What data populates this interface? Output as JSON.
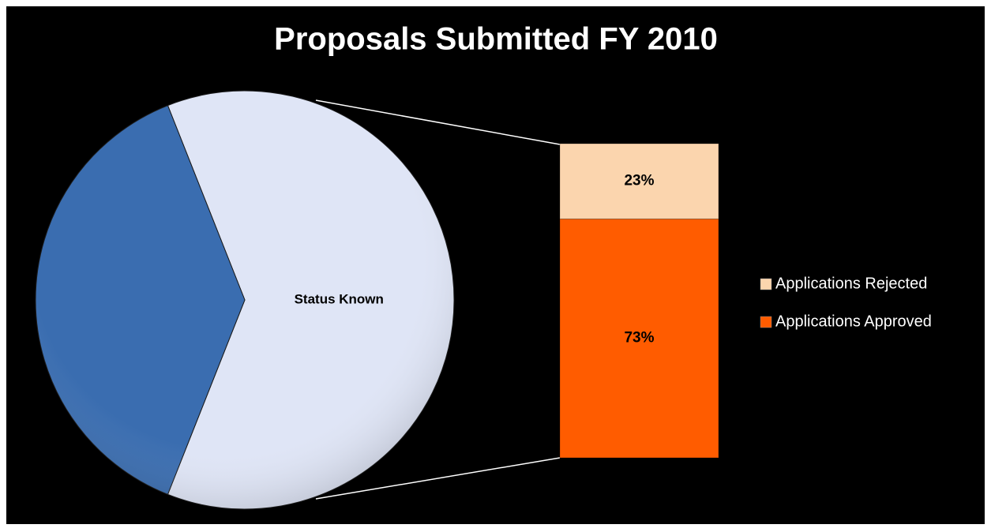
{
  "chart_data": {
    "type": "pie",
    "title": "Proposals Submitted FY 2010",
    "categories": [
      "Status Known",
      null
    ],
    "values": [
      62,
      38
    ],
    "colors": [
      "#dfe5f6",
      "#3a6db0"
    ],
    "secondary": {
      "type": "stacked-bar",
      "categories": [
        "Applications Rejected",
        "Applications Approved"
      ],
      "values": [
        23,
        73
      ],
      "value_labels": [
        "23%",
        "73%"
      ],
      "colors": [
        "#fbd5ae",
        "#ff5c00"
      ]
    },
    "legend": "right"
  }
}
